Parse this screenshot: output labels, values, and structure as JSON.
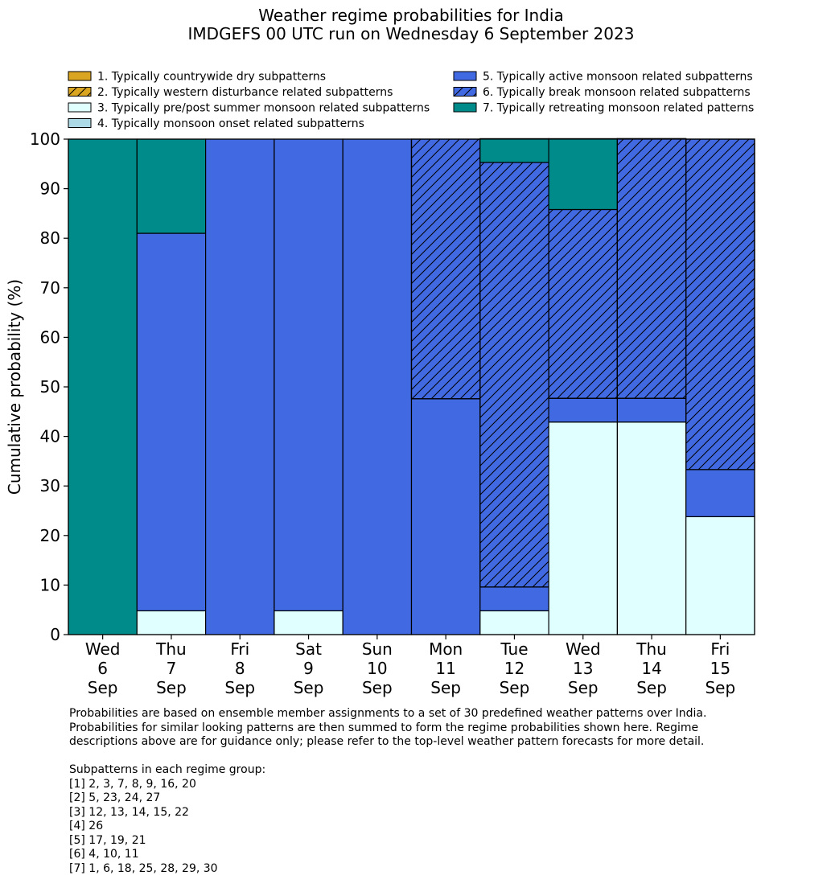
{
  "chart_data": {
    "type": "bar",
    "stacked": true,
    "title": "Weather regime probabilities for India",
    "subtitle": "IMDGEFS 00 UTC run on Wednesday 6 September 2023",
    "ylabel": "Cumulative probability (%)",
    "xlabel": "",
    "ylim": [
      0,
      100
    ],
    "yticks": [
      0,
      10,
      20,
      30,
      40,
      50,
      60,
      70,
      80,
      90,
      100
    ],
    "grid": false,
    "legend_position": "top, two columns",
    "categories": [
      [
        "Wed",
        "6",
        "Sep"
      ],
      [
        "Thu",
        "7",
        "Sep"
      ],
      [
        "Fri",
        "8",
        "Sep"
      ],
      [
        "Sat",
        "9",
        "Sep"
      ],
      [
        "Sun",
        "10",
        "Sep"
      ],
      [
        "Mon",
        "11",
        "Sep"
      ],
      [
        "Tue",
        "12",
        "Sep"
      ],
      [
        "Wed",
        "13",
        "Sep"
      ],
      [
        "Thu",
        "14",
        "Sep"
      ],
      [
        "Fri",
        "15",
        "Sep"
      ]
    ],
    "series": [
      {
        "name": "1. Typically countrywide dry subpatterns",
        "color": "#DAA520",
        "hatch": false,
        "values": [
          0,
          0,
          0,
          0,
          0,
          0,
          0,
          0,
          0,
          0
        ]
      },
      {
        "name": "2. Typically western disturbance related subpatterns",
        "color": "#DAA520",
        "hatch": true,
        "values": [
          0,
          0,
          0,
          0,
          0,
          0,
          0,
          0,
          0,
          0
        ]
      },
      {
        "name": "3. Typically pre/post summer monsoon related subpatterns",
        "color": "#E0FFFF",
        "hatch": false,
        "values": [
          0,
          4.8,
          0,
          4.8,
          0,
          0,
          4.8,
          42.9,
          42.9,
          23.8
        ]
      },
      {
        "name": "4. Typically monsoon onset related subpatterns",
        "color": "#ADD8E6",
        "hatch": false,
        "values": [
          0,
          0,
          0,
          0,
          0,
          0,
          0,
          0,
          0,
          0
        ]
      },
      {
        "name": "5. Typically active monsoon related subpatterns",
        "color": "#4169E1",
        "hatch": false,
        "values": [
          0,
          76.2,
          100,
          95.2,
          100,
          47.6,
          4.8,
          4.8,
          4.8,
          9.5
        ]
      },
      {
        "name": "6. Typically break monsoon related subpatterns",
        "color": "#4169E1",
        "hatch": true,
        "values": [
          0,
          0,
          0,
          0,
          0,
          52.4,
          85.7,
          38.1,
          52.4,
          66.7
        ]
      },
      {
        "name": "7. Typically retreating monsoon related patterns",
        "color": "#008B8B",
        "hatch": false,
        "values": [
          100,
          19.0,
          0,
          0,
          0,
          0,
          4.8,
          14.3,
          0,
          0
        ]
      }
    ]
  },
  "notes": {
    "paragraph": [
      "Probabilities are based on ensemble member assignments to a set of 30 predefined weather patterns over India.",
      "Probabilities for similar looking patterns are then summed to form the regime probabilities shown here. Regime",
      "descriptions above are for guidance only; please refer to the top-level weather pattern forecasts for more detail."
    ],
    "groups_heading": "Subpatterns in each regime group:",
    "groups": [
      "[1] 2, 3, 7, 8, 9, 16, 20",
      "[2] 5, 23, 24, 27",
      "[3] 12, 13, 14, 15, 22",
      "[4] 26",
      "[5] 17, 19, 21",
      "[6] 4, 10, 11",
      "[7] 1, 6, 18, 25, 28, 29, 30"
    ]
  }
}
